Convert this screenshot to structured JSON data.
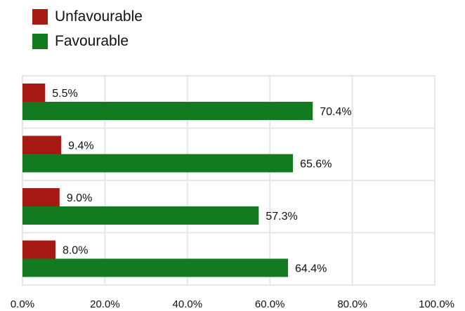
{
  "chart_data": {
    "type": "bar",
    "orientation": "horizontal",
    "categories": [
      "",
      "",
      "",
      ""
    ],
    "series": [
      {
        "name": "Unfavourable",
        "color": "#a71a14",
        "values": [
          5.5,
          9.4,
          9.0,
          8.0
        ],
        "labels": [
          "5.5%",
          "9.4%",
          "9.0%",
          "8.0%"
        ]
      },
      {
        "name": "Favourable",
        "color": "#137a1f",
        "values": [
          70.4,
          65.6,
          57.3,
          64.4
        ],
        "labels": [
          "70.4%",
          "65.6%",
          "57.3%",
          "64.4%"
        ]
      }
    ],
    "xlim": [
      0,
      100
    ],
    "xticks": [
      0,
      20,
      40,
      60,
      80,
      100
    ],
    "xtick_labels": [
      "0.0%",
      "20.0%",
      "40.0%",
      "60.0%",
      "80.0%",
      "100.0%"
    ],
    "grid": true,
    "legend_position": "top-left"
  },
  "colors": {
    "grid": "#e6e6e6",
    "axis": "#cccccc",
    "text": "#111111"
  }
}
